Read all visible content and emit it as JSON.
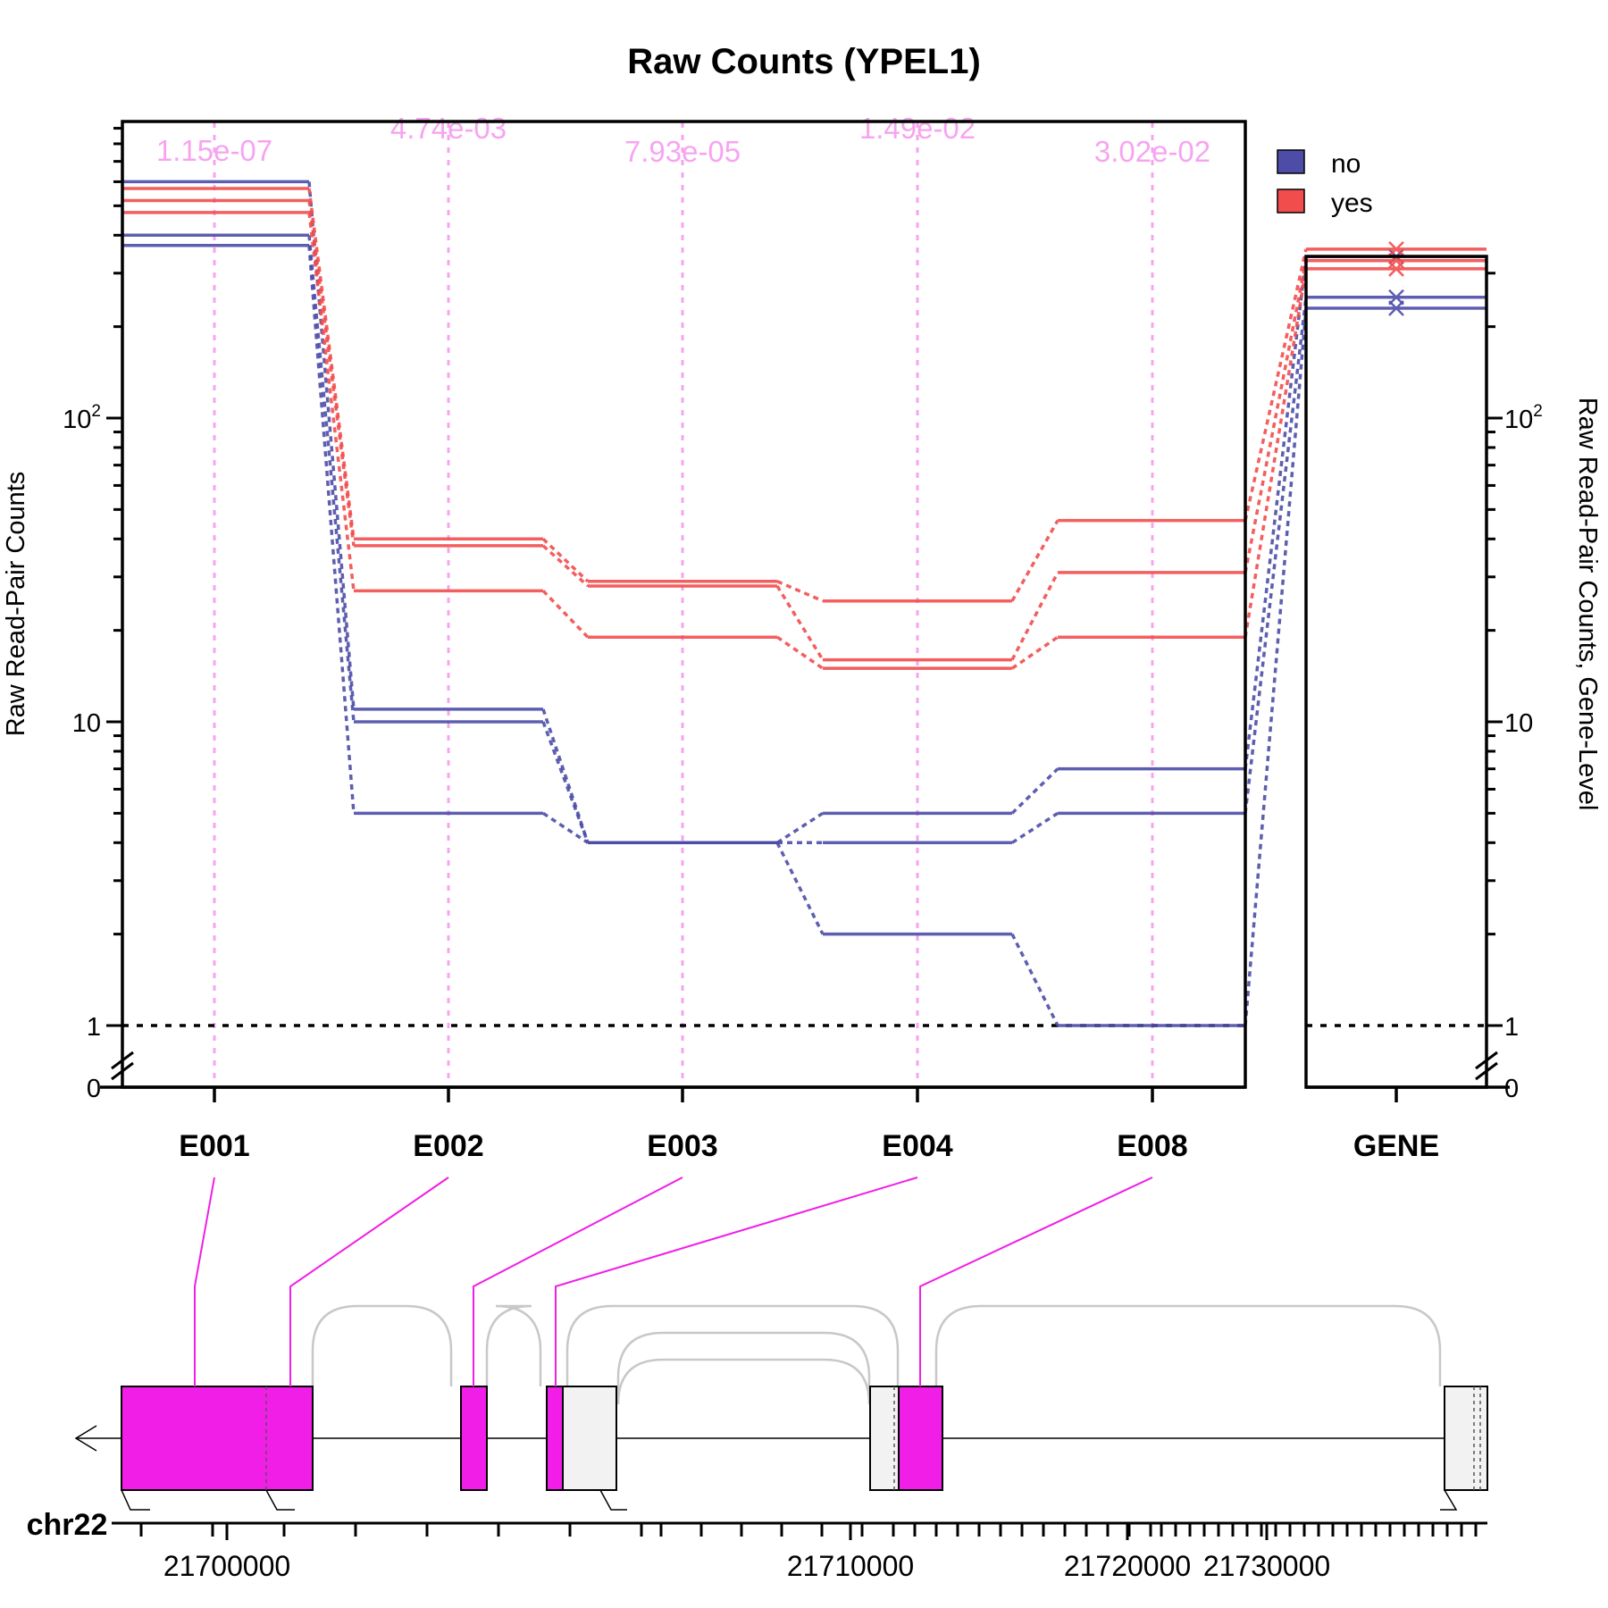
{
  "chart_data": {
    "type": "line",
    "title": "Raw Counts (YPEL1)",
    "ylabel": "Raw Read-Pair Counts",
    "ylabel_right": "Raw Read-Pair Counts, Gene-Level",
    "y_scale": "log",
    "ylim": [
      0,
      1000
    ],
    "y_ticks_left": [
      {
        "value": 0,
        "base": "0",
        "sup": ""
      },
      {
        "value": 1,
        "base": "1",
        "sup": ""
      },
      {
        "value": 10,
        "base": "10",
        "sup": ""
      },
      {
        "value": 100,
        "base": "10",
        "sup": "2"
      }
    ],
    "y_ticks_right": [
      {
        "value": 0,
        "base": "0",
        "sup": ""
      },
      {
        "value": 1,
        "base": "1",
        "sup": ""
      },
      {
        "value": 10,
        "base": "10",
        "sup": ""
      },
      {
        "value": 100,
        "base": "10",
        "sup": "2"
      }
    ],
    "categories": [
      "E001",
      "E002",
      "E003",
      "E004",
      "E008"
    ],
    "gene_category": "GENE",
    "pvalues": [
      "1.15e-07",
      "4.74e-03",
      "7.93e-05",
      "1.49e-02",
      "3.02e-02"
    ],
    "legend": [
      {
        "name": "no",
        "color": "#4d4da8"
      },
      {
        "name": "yes",
        "color": "#f24d4d"
      }
    ],
    "legend_position": "top-right",
    "series": [
      {
        "group": "no",
        "values": [
          600,
          11,
          4,
          5,
          7
        ],
        "gene": 340
      },
      {
        "group": "no",
        "values": [
          400,
          10,
          4,
          4,
          5
        ],
        "gene": 250
      },
      {
        "group": "no",
        "values": [
          370,
          5,
          4,
          2,
          1
        ],
        "gene": 230
      },
      {
        "group": "yes",
        "values": [
          570,
          40,
          29,
          25,
          46
        ],
        "gene": 360
      },
      {
        "group": "yes",
        "values": [
          520,
          38,
          28,
          16,
          31
        ],
        "gene": 330
      },
      {
        "group": "yes",
        "values": [
          475,
          27,
          19,
          15,
          19
        ],
        "gene": 310
      }
    ],
    "gene_model": {
      "chromosome": "chr22",
      "coordinate_labels": [
        "21700000",
        "21710000",
        "21720000",
        "21730000"
      ],
      "strand": "minus"
    },
    "colors": {
      "no": "#4d4da8",
      "yes": "#f24d4d",
      "highlight_exon": "#f01ee6",
      "pvalue_line": "#f7a4f0",
      "junction": "#c8c8c8"
    }
  }
}
